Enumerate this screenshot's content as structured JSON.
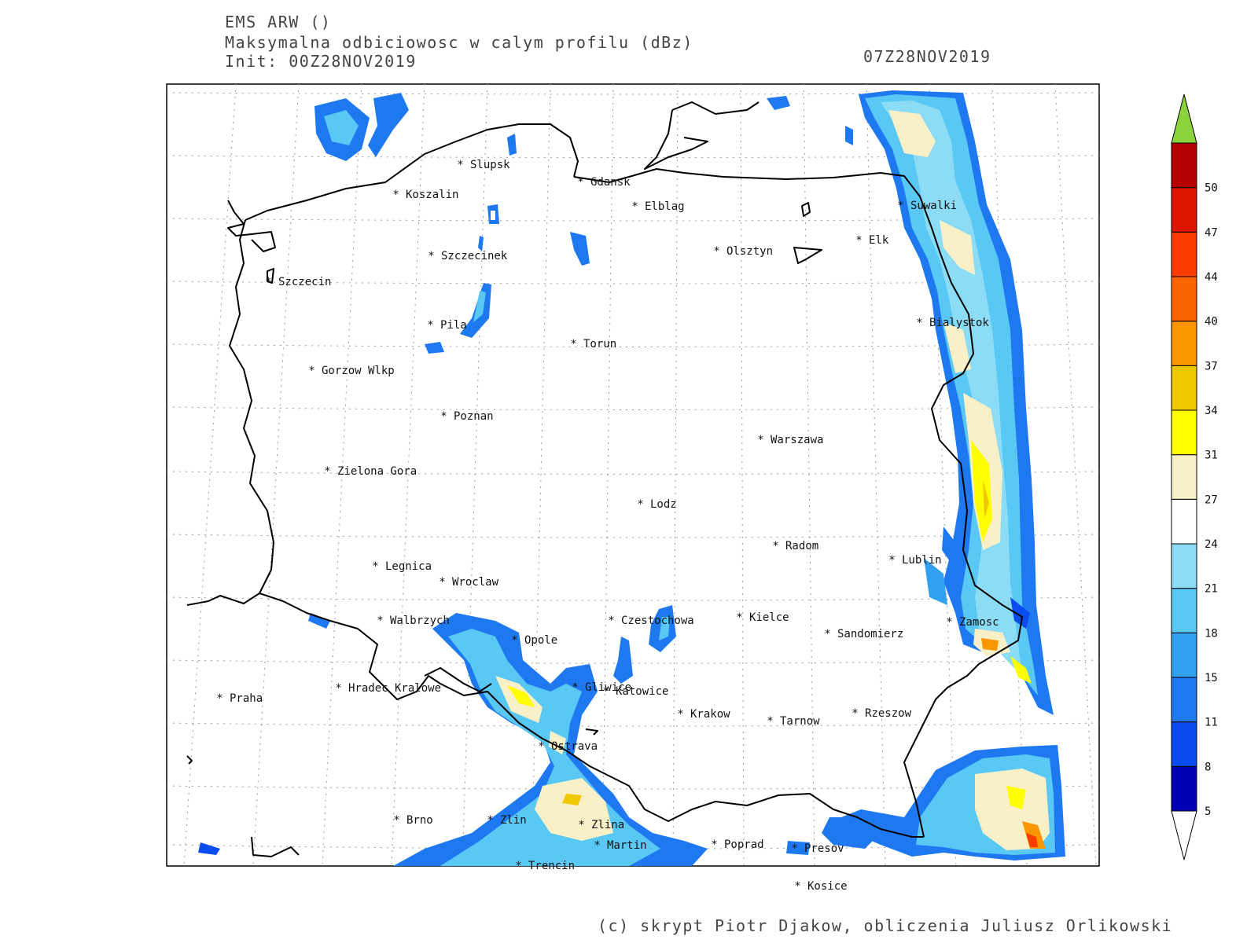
{
  "header": {
    "model": "EMS ARW ()",
    "field": "Maksymalna odbiciowosc w calym profilu (dBz)",
    "init": "Init: 00Z28NOV2019",
    "valid": "07Z28NOV2019"
  },
  "credit": "(c) skrypt Piotr Djakow, obliczenia Juliusz Orlikowski",
  "cities": [
    {
      "name": "Slupsk"
    },
    {
      "name": "Koszalin"
    },
    {
      "name": "Gdansk"
    },
    {
      "name": "Elblag"
    },
    {
      "name": "Suwalki"
    },
    {
      "name": "Elk"
    },
    {
      "name": "Olsztyn"
    },
    {
      "name": "Szczecinek"
    },
    {
      "name": "Szczecin"
    },
    {
      "name": "Pila"
    },
    {
      "name": "Torun"
    },
    {
      "name": "Bialystok"
    },
    {
      "name": "Gorzow Wlkp"
    },
    {
      "name": "Poznan"
    },
    {
      "name": "Warszawa"
    },
    {
      "name": "Zielona Gora"
    },
    {
      "name": "Lodz"
    },
    {
      "name": "Radom"
    },
    {
      "name": "Lublin"
    },
    {
      "name": "Legnica"
    },
    {
      "name": "Wroclaw"
    },
    {
      "name": "Walbrzych"
    },
    {
      "name": "Opole"
    },
    {
      "name": "Czestochowa"
    },
    {
      "name": "Kielce"
    },
    {
      "name": "Zamosc"
    },
    {
      "name": "Sandomierz"
    },
    {
      "name": "Praha"
    },
    {
      "name": "Hradec Kralowe"
    },
    {
      "name": "Gliwice"
    },
    {
      "name": "Katowice"
    },
    {
      "name": "Krakow"
    },
    {
      "name": "Tarnow"
    },
    {
      "name": "Rzeszow"
    },
    {
      "name": "Ostrava"
    },
    {
      "name": "Brno"
    },
    {
      "name": "Zlin"
    },
    {
      "name": "Zlina"
    },
    {
      "name": "Martin"
    },
    {
      "name": "Poprad"
    },
    {
      "name": "Presov"
    },
    {
      "name": "Trencin"
    },
    {
      "name": "Kosice"
    }
  ],
  "legend": {
    "levels": [
      "5",
      "8",
      "11",
      "15",
      "18",
      "21",
      "24",
      "27",
      "31",
      "34",
      "37",
      "40",
      "44",
      "47",
      "50"
    ],
    "colors": [
      "#0000b4",
      "#0a4cf0",
      "#1e78f0",
      "#32a0f0",
      "#5ac8f5",
      "#8cdcf5",
      "#ffffff",
      "#faf0c8",
      "#ffff00",
      "#f0c800",
      "#fa9600",
      "#fa6400",
      "#fa3c00",
      "#dc1400",
      "#b40000"
    ],
    "over_color": "#8cd23c",
    "under_color": "#ffffff"
  }
}
